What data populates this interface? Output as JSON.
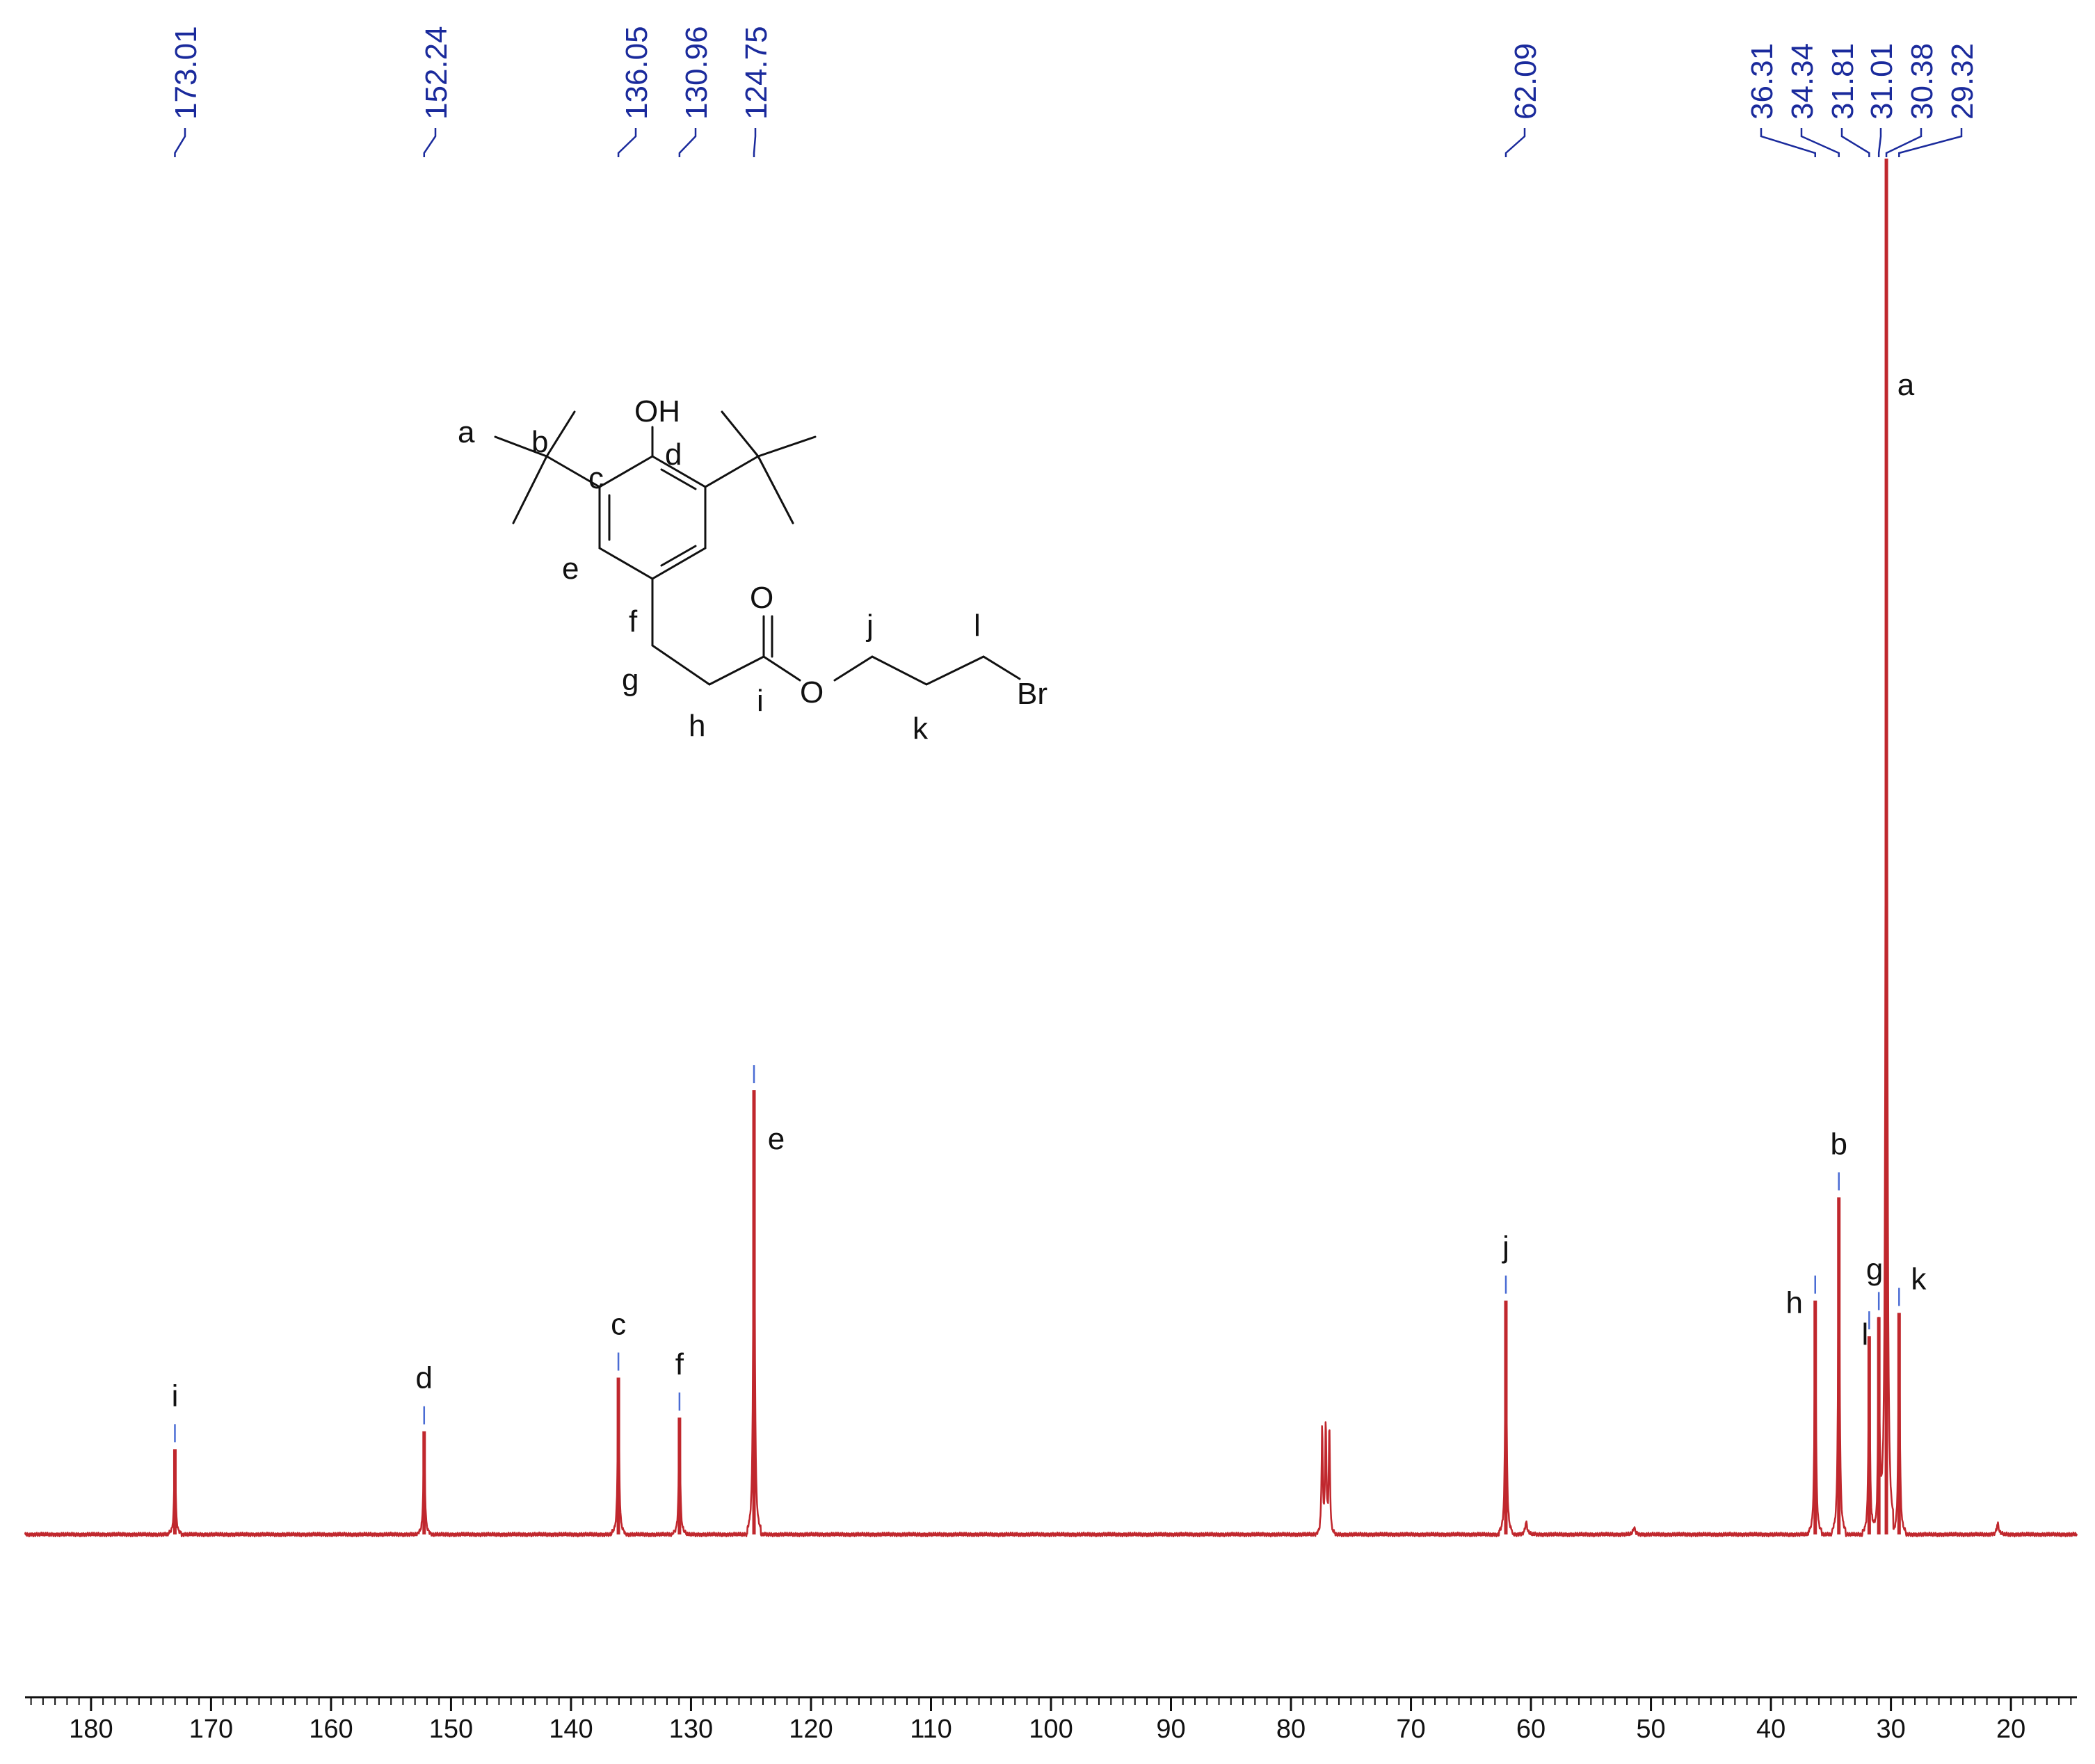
{
  "chart_data": {
    "type": "line",
    "title": "",
    "xlabel": "",
    "ylabel": "",
    "x_reversed": true,
    "xlim": [
      185.5,
      14.5
    ],
    "x_ticks": [
      "180",
      "170",
      "160",
      "150",
      "140",
      "130",
      "120",
      "110",
      "100",
      "90",
      "80",
      "70",
      "60",
      "50",
      "40",
      "30",
      "20"
    ],
    "spectrum_color": "#c0272d",
    "peak_label_color": "#1a2a9c",
    "marker_color": "#4a6cd4",
    "peak_list": [
      "173.01",
      "152.24",
      "136.05",
      "130.96",
      "124.75",
      "62.09",
      "36.31",
      "34.34",
      "31.81",
      "31.01",
      "30.38",
      "29.32"
    ],
    "peaks": [
      {
        "shift": 173.01,
        "intensity": 0.062,
        "assignment": "i"
      },
      {
        "shift": 152.24,
        "intensity": 0.075,
        "assignment": "d"
      },
      {
        "shift": 136.05,
        "intensity": 0.114,
        "assignment": "c"
      },
      {
        "shift": 130.96,
        "intensity": 0.085,
        "assignment": "f"
      },
      {
        "shift": 124.75,
        "intensity": 0.323,
        "assignment": "e"
      },
      {
        "shift": 62.09,
        "intensity": 0.17,
        "assignment": "j"
      },
      {
        "shift": 36.31,
        "intensity": 0.17,
        "assignment": "h"
      },
      {
        "shift": 34.34,
        "intensity": 0.245,
        "assignment": "b"
      },
      {
        "shift": 31.81,
        "intensity": 0.144,
        "assignment": "l"
      },
      {
        "shift": 31.01,
        "intensity": 0.158,
        "assignment": "g"
      },
      {
        "shift": 30.38,
        "intensity": 1.0,
        "assignment": "a"
      },
      {
        "shift": 29.32,
        "intensity": 0.161,
        "assignment": "k"
      }
    ],
    "solvent_peaks": [
      {
        "shift": 77.4,
        "intensity": 0.077
      },
      {
        "shift": 77.1,
        "intensity": 0.079
      },
      {
        "shift": 76.8,
        "intensity": 0.077
      }
    ],
    "minor_peaks": [
      {
        "shift": 60.4,
        "intensity": 0.009
      },
      {
        "shift": 51.4,
        "intensity": 0.005
      },
      {
        "shift": 21.1,
        "intensity": 0.008
      }
    ]
  },
  "structure": {
    "atom_labels": {
      "oh": "OH",
      "o_carbonyl": "O",
      "o_ester": "O",
      "br": "Br"
    },
    "position_labels": [
      "a",
      "b",
      "c",
      "d",
      "e",
      "f",
      "g",
      "h",
      "i",
      "j",
      "k",
      "l"
    ]
  }
}
